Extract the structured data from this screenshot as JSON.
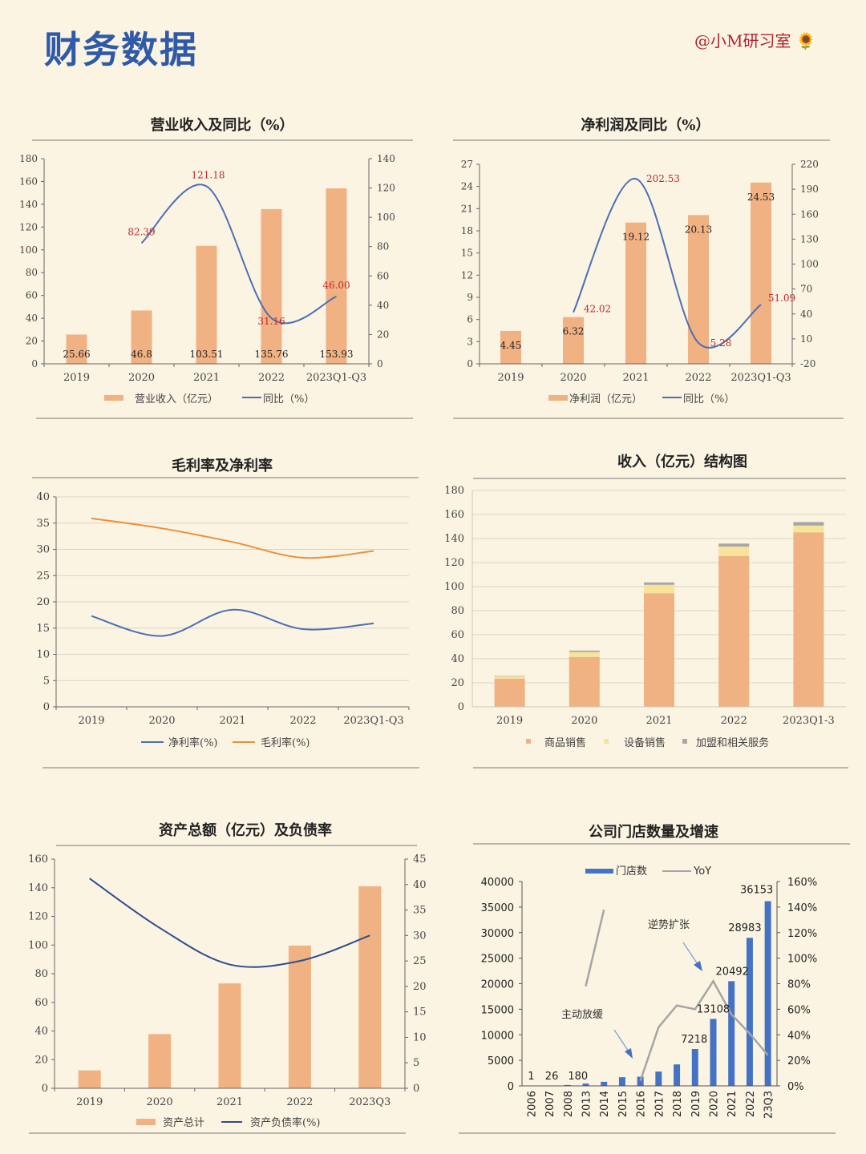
{
  "header": {
    "title": "财务数据",
    "author": "@小M研习室",
    "sunflower_icon": "🌻"
  },
  "colors": {
    "bar": "#f0b183",
    "line_blue": "#4a6fb5",
    "line_orange": "#ed8f3c",
    "label_red": "#c0282d",
    "bar_yellow": "#f7e39a",
    "bar_gray": "#a7a7a7",
    "bar_blue": "#4472c4",
    "line_gray": "#a5a5a5",
    "axis": "#666666",
    "title_blue": "#2f5aa8"
  },
  "chart_data": [
    {
      "id": "revenue",
      "type": "bar",
      "title": "营业收入及同比（%）",
      "categories": [
        "2019",
        "2020",
        "2021",
        "2022",
        "2023Q1-Q3"
      ],
      "series": [
        {
          "name": "营业收入（亿元）",
          "type": "bar",
          "axis": "left",
          "values": [
            25.66,
            46.8,
            103.51,
            135.76,
            153.93
          ],
          "labels": [
            "25.66",
            "46.8",
            "103.51",
            "135.76",
            "153.93"
          ]
        },
        {
          "name": "同比（%）",
          "type": "line",
          "axis": "right",
          "values": [
            null,
            82.39,
            121.18,
            31.16,
            46.0
          ],
          "labels": [
            "",
            "82.39",
            "121.18",
            "31.16",
            "46.00"
          ]
        }
      ],
      "ylim_left": [
        0,
        180
      ],
      "ylim_right": [
        0,
        140
      ],
      "yticks_left": [
        "0",
        "20",
        "40",
        "60",
        "80",
        "100",
        "120",
        "140",
        "160",
        "180"
      ],
      "yticks_right": [
        "0",
        "20",
        "40",
        "60",
        "80",
        "100",
        "120",
        "140"
      ]
    },
    {
      "id": "profit",
      "type": "bar",
      "title": "净利润及同比（%）",
      "categories": [
        "2019",
        "2020",
        "2021",
        "2022",
        "2023Q1-Q3"
      ],
      "series": [
        {
          "name": "净利润（亿元）",
          "type": "bar",
          "axis": "left",
          "values": [
            4.45,
            6.32,
            19.12,
            20.13,
            24.53
          ],
          "labels": [
            "4.45",
            "6.32",
            "19.12",
            "20.13",
            "24.53"
          ]
        },
        {
          "name": "同比（%）",
          "type": "line",
          "axis": "right",
          "values": [
            null,
            42.02,
            202.53,
            5.28,
            51.09
          ],
          "labels": [
            "",
            "42.02",
            "202.53",
            "5.28",
            "51.09"
          ]
        }
      ],
      "ylim_left": [
        0,
        27
      ],
      "ylim_right": [
        -20,
        220
      ],
      "yticks_left": [
        "0",
        "3",
        "6",
        "9",
        "12",
        "15",
        "18",
        "21",
        "24",
        "27"
      ],
      "yticks_right": [
        "-20",
        "10",
        "40",
        "70",
        "100",
        "130",
        "160",
        "190",
        "220"
      ]
    },
    {
      "id": "margin",
      "type": "line",
      "title": "毛利率及净利率",
      "categories": [
        "2019",
        "2020",
        "2021",
        "2022",
        "2023Q1-Q3"
      ],
      "series": [
        {
          "name": "净利率(%)",
          "values": [
            17.3,
            13.5,
            18.5,
            14.8,
            15.9
          ]
        },
        {
          "name": "毛利率(%)",
          "values": [
            35.9,
            34.0,
            31.4,
            28.4,
            29.7
          ]
        }
      ],
      "ylim": [
        0,
        40
      ],
      "yticks": [
        "0",
        "5",
        "10",
        "15",
        "20",
        "25",
        "30",
        "35",
        "40"
      ]
    },
    {
      "id": "structure",
      "type": "bar",
      "title": "收入（亿元）结构图",
      "categories": [
        "2019",
        "2020",
        "2021",
        "2022",
        "2023Q1-3"
      ],
      "series": [
        {
          "name": "商品销售",
          "values": [
            23.5,
            41.5,
            94.5,
            125.5,
            145.0
          ]
        },
        {
          "name": "设备销售",
          "values": [
            1.8,
            4.1,
            7.0,
            7.8,
            5.8
          ]
        },
        {
          "name": "加盟和相关服务",
          "values": [
            0.4,
            1.2,
            2.0,
            2.5,
            2.9
          ]
        }
      ],
      "ylim": [
        0,
        180
      ],
      "yticks": [
        "0",
        "20",
        "40",
        "60",
        "80",
        "100",
        "120",
        "140",
        "160",
        "180"
      ]
    },
    {
      "id": "assets",
      "type": "bar",
      "title": "资产总额（亿元）及负债率",
      "categories": [
        "2019",
        "2020",
        "2021",
        "2022",
        "2023Q3"
      ],
      "series": [
        {
          "name": "资产总计",
          "type": "bar",
          "axis": "left",
          "values": [
            12.5,
            37.8,
            73.2,
            99.6,
            141.0
          ]
        },
        {
          "name": "资产负债率(%)",
          "type": "line",
          "axis": "right",
          "values": [
            41.2,
            31.5,
            24.3,
            25.0,
            30.0
          ]
        }
      ],
      "ylim_left": [
        0,
        160
      ],
      "ylim_right": [
        0,
        45
      ],
      "yticks_left": [
        "0",
        "20",
        "40",
        "60",
        "80",
        "100",
        "120",
        "140",
        "160"
      ],
      "yticks_right": [
        "0",
        "5",
        "10",
        "15",
        "20",
        "25",
        "30",
        "35",
        "40",
        "45"
      ]
    },
    {
      "id": "stores",
      "type": "bar",
      "title": "公司门店数量及增速",
      "categories": [
        "2006",
        "2007",
        "2008",
        "2013",
        "2014",
        "2015",
        "2016",
        "2017",
        "2018",
        "2019",
        "2020",
        "2021",
        "2022",
        "23Q3"
      ],
      "series": [
        {
          "name": "门店数",
          "type": "bar",
          "axis": "left",
          "values": [
            1,
            26,
            180,
            450,
            800,
            1700,
            1800,
            2800,
            4200,
            7218,
            13108,
            20492,
            28983,
            36153
          ],
          "labels": [
            "1",
            "26",
            "180",
            "",
            "",
            "",
            "",
            "",
            "",
            "7218",
            "13108",
            "20492",
            "28983",
            "36153"
          ]
        },
        {
          "name": "YoY",
          "type": "line",
          "axis": "right",
          "values": [
            null,
            null,
            null,
            78,
            138,
            null,
            4,
            46,
            63,
            60,
            82,
            56,
            41,
            24
          ]
        }
      ],
      "ylim_left": [
        0,
        40000
      ],
      "ylim_right": [
        0,
        160
      ],
      "yticks_left": [
        "0",
        "5000",
        "10000",
        "15000",
        "20000",
        "25000",
        "30000",
        "35000",
        "40000"
      ],
      "yticks_right": [
        "0%",
        "20%",
        "40%",
        "60%",
        "80%",
        "100%",
        "120%",
        "140%",
        "160%"
      ],
      "annotations": [
        "逆势扩张",
        "主动放缓"
      ]
    }
  ]
}
